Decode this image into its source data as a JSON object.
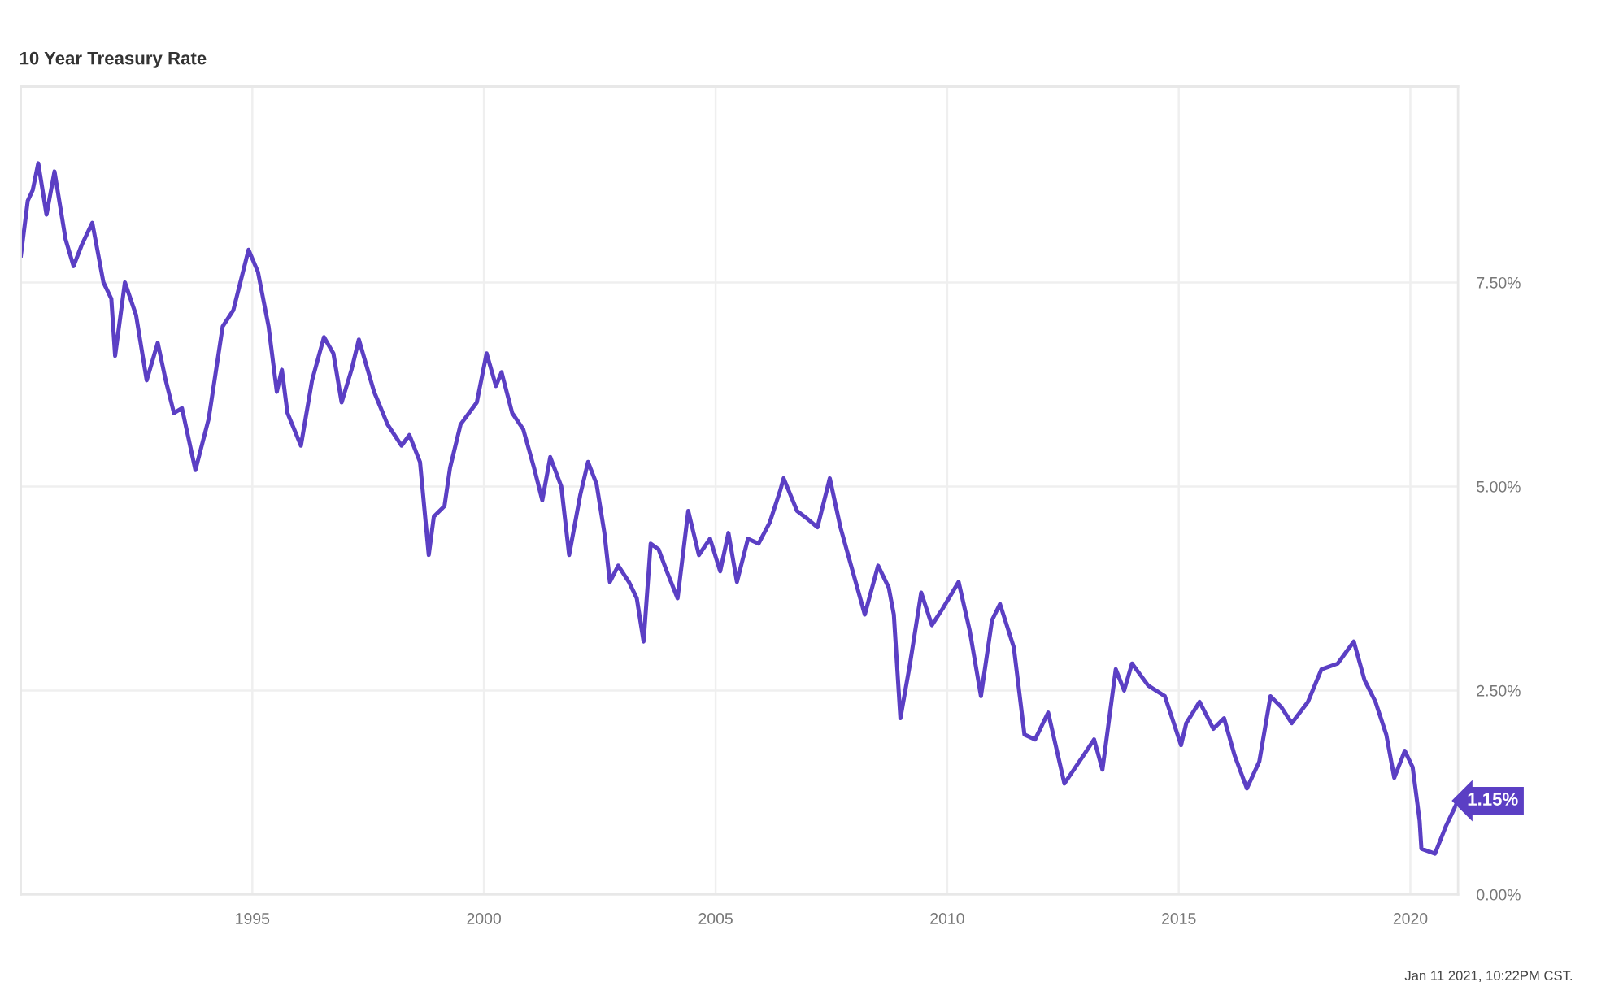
{
  "chart_data": {
    "type": "line",
    "title": "10 Year Treasury Rate",
    "series": [
      {
        "color": "#5b3fc4",
        "x": [
          "1990-01-02",
          "1990-02-25",
          "1990-04-05",
          "1990-05-19",
          "1990-07-23",
          "1990-09-24",
          "1990-12-20",
          "1991-02-21",
          "1991-04-27",
          "1991-07-19",
          "1991-10-15",
          "1991-12-16",
          "1992-01-15",
          "1992-04-01",
          "1992-06-28",
          "1992-09-20",
          "1992-12-16",
          "1993-02-17",
          "1993-04-23",
          "1993-06-25",
          "1993-10-09",
          "1994-01-22",
          "1994-05-12",
          "1994-08-04",
          "1994-12-02",
          "1995-02-14",
          "1995-05-09",
          "1995-07-13",
          "1995-08-22",
          "1995-10-05",
          "1996-01-19",
          "1996-04-16",
          "1996-07-19",
          "1996-10-01",
          "1996-12-05",
          "1997-02-21",
          "1997-04-20",
          "1997-08-18",
          "1997-12-02",
          "1998-03-22",
          "1998-05-23",
          "1998-08-15",
          "1998-10-23",
          "1998-12-02",
          "1999-02-24",
          "1999-04-09",
          "1999-07-01",
          "1999-11-06",
          "2000-01-22",
          "2000-04-05",
          "2000-05-19",
          "2000-08-11",
          "2000-11-06",
          "2001-01-30",
          "2001-04-05",
          "2001-06-07",
          "2001-09-02",
          "2001-11-03",
          "2002-01-30",
          "2002-04-01",
          "2002-06-07",
          "2002-08-08",
          "2002-09-20",
          "2002-11-25",
          "2003-02-17",
          "2003-04-20",
          "2003-06-13",
          "2003-08-08",
          "2003-10-09",
          "2003-12-13",
          "2004-03-07",
          "2004-05-30",
          "2004-08-22",
          "2004-11-18",
          "2005-02-06",
          "2005-04-12",
          "2005-06-18",
          "2005-09-13",
          "2005-12-06",
          "2006-03-04",
          "2006-05-27",
          "2006-06-21",
          "2006-10-05",
          "2006-12-28",
          "2007-03-15",
          "2007-06-20",
          "2007-09-12",
          "2007-12-05",
          "2008-03-22",
          "2008-07-05",
          "2008-09-27",
          "2008-11-06",
          "2008-12-28",
          "2009-03-14",
          "2009-06-10",
          "2009-09-02",
          "2009-11-25",
          "2010-04-01",
          "2010-06-28",
          "2010-09-24",
          "2010-12-20",
          "2011-02-21",
          "2011-06-10",
          "2011-09-02",
          "2011-11-25",
          "2012-03-07",
          "2012-07-13",
          "2012-12-09",
          "2013-03-04",
          "2013-05-09",
          "2013-08-22",
          "2013-10-27",
          "2013-12-28",
          "2014-05-05",
          "2014-09-13",
          "2015-01-19",
          "2015-03-01",
          "2015-06-14",
          "2015-10-01",
          "2015-12-24",
          "2016-03-17",
          "2016-06-21",
          "2016-09-27",
          "2016-12-24",
          "2017-03-17",
          "2017-06-10",
          "2017-10-15",
          "2018-01-30",
          "2018-06-07",
          "2018-10-12",
          "2019-01-04",
          "2019-04-01",
          "2019-06-25",
          "2019-08-27",
          "2019-11-18",
          "2020-01-19",
          "2020-03-14",
          "2020-03-28",
          "2020-07-13",
          "2020-10-05",
          "2021-01-11"
        ],
        "values": [
          7.83,
          8.5,
          8.63,
          8.96,
          8.33,
          8.86,
          8.03,
          7.7,
          7.96,
          8.23,
          7.5,
          7.3,
          6.6,
          7.5,
          7.1,
          6.3,
          6.76,
          6.3,
          5.9,
          5.96,
          5.2,
          5.83,
          6.96,
          7.16,
          7.9,
          7.63,
          6.96,
          6.16,
          6.43,
          5.9,
          5.5,
          6.3,
          6.83,
          6.63,
          6.03,
          6.43,
          6.8,
          6.16,
          5.76,
          5.5,
          5.63,
          5.3,
          4.16,
          4.63,
          4.76,
          5.23,
          5.76,
          6.03,
          6.63,
          6.23,
          6.4,
          5.9,
          5.7,
          5.23,
          4.83,
          5.36,
          5.0,
          4.16,
          4.9,
          5.3,
          5.03,
          4.43,
          3.83,
          4.03,
          3.83,
          3.63,
          3.1,
          4.3,
          4.23,
          3.96,
          3.63,
          4.7,
          4.16,
          4.36,
          3.96,
          4.43,
          3.83,
          4.36,
          4.3,
          4.56,
          4.96,
          5.1,
          4.7,
          4.6,
          4.5,
          5.1,
          4.5,
          4.03,
          3.43,
          4.03,
          3.76,
          3.43,
          2.16,
          2.83,
          3.7,
          3.3,
          3.5,
          3.83,
          3.23,
          2.43,
          3.36,
          3.56,
          3.03,
          1.96,
          1.9,
          2.23,
          1.36,
          1.7,
          1.9,
          1.53,
          2.76,
          2.5,
          2.83,
          2.56,
          2.43,
          1.83,
          2.1,
          2.36,
          2.03,
          2.16,
          1.7,
          1.3,
          1.63,
          2.43,
          2.3,
          2.1,
          2.36,
          2.76,
          2.83,
          3.1,
          2.63,
          2.36,
          1.96,
          1.43,
          1.76,
          1.56,
          0.9,
          0.56,
          0.5,
          0.83,
          1.15
        ]
      }
    ],
    "xlim": [
      "1990-01-01",
      "2021-01-11"
    ],
    "xticks": [
      {
        "value": "1995",
        "label": "1995"
      },
      {
        "value": "2000",
        "label": "2000"
      },
      {
        "value": "2005",
        "label": "2005"
      },
      {
        "value": "2010",
        "label": "2010"
      },
      {
        "value": "2015",
        "label": "2015"
      },
      {
        "value": "2020",
        "label": "2020"
      }
    ],
    "ylim": [
      0,
      9.9
    ],
    "yticks": [
      {
        "value": 0,
        "label": "0.00%"
      },
      {
        "value": 2.5,
        "label": "2.50%"
      },
      {
        "value": 5,
        "label": "5.00%"
      },
      {
        "value": 7.5,
        "label": "7.50%"
      }
    ],
    "grid": true,
    "marker": "none",
    "line_style": "solid",
    "annotations": [
      {
        "text": "1.15%",
        "x": "2021-01-11",
        "y": 1.15
      },
      "Jan 11 2021, 10:22PM CST."
    ]
  }
}
